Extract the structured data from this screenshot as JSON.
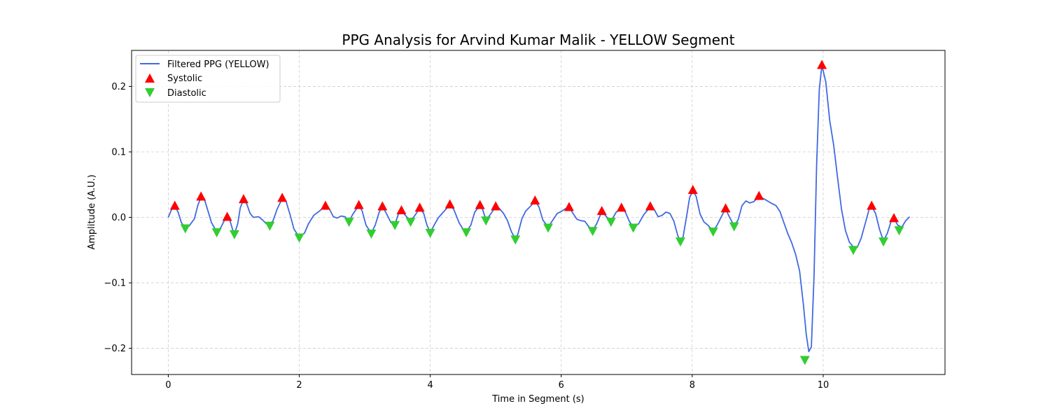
{
  "chart_data": {
    "type": "line",
    "title": "PPG Analysis for Arvind Kumar Malik - YELLOW Segment",
    "xlabel": "Time in Segment (s)",
    "ylabel": "Amplitude (A.U.)",
    "xlim": [
      -0.56,
      11.86
    ],
    "ylim": [
      -0.24,
      0.255
    ],
    "xticks": [
      0,
      2,
      4,
      6,
      8,
      10
    ],
    "xtick_labels": [
      "0",
      "2",
      "4",
      "6",
      "8",
      "10"
    ],
    "yticks": [
      -0.2,
      -0.1,
      0.0,
      0.1,
      0.2
    ],
    "ytick_labels": [
      "−0.2",
      "−0.1",
      "0.0",
      "0.1",
      "0.2"
    ],
    "grid": true,
    "legend_position": "top-left",
    "colors": {
      "line": "#4169e1",
      "systolic": "#ff0000",
      "diastolic": "#32cd32"
    },
    "series": [
      {
        "name": "Filtered PPG (YELLOW)",
        "kind": "line",
        "points": [
          [
            0.0,
            0.0
          ],
          [
            0.05,
            0.012
          ],
          [
            0.1,
            0.017
          ],
          [
            0.15,
            0.008
          ],
          [
            0.2,
            -0.008
          ],
          [
            0.26,
            -0.016
          ],
          [
            0.32,
            -0.013
          ],
          [
            0.4,
            -0.002
          ],
          [
            0.45,
            0.018
          ],
          [
            0.5,
            0.031
          ],
          [
            0.55,
            0.028
          ],
          [
            0.6,
            0.012
          ],
          [
            0.66,
            -0.008
          ],
          [
            0.74,
            -0.022
          ],
          [
            0.8,
            -0.016
          ],
          [
            0.86,
            -0.004
          ],
          [
            0.9,
            0.0
          ],
          [
            0.94,
            -0.004
          ],
          [
            0.98,
            -0.018
          ],
          [
            1.01,
            -0.025
          ],
          [
            1.06,
            -0.01
          ],
          [
            1.1,
            0.015
          ],
          [
            1.15,
            0.027
          ],
          [
            1.2,
            0.02
          ],
          [
            1.25,
            0.006
          ],
          [
            1.3,
            0.0
          ],
          [
            1.38,
            0.001
          ],
          [
            1.44,
            -0.004
          ],
          [
            1.5,
            -0.01
          ],
          [
            1.55,
            -0.012
          ],
          [
            1.6,
            -0.005
          ],
          [
            1.66,
            0.012
          ],
          [
            1.74,
            0.029
          ],
          [
            1.8,
            0.024
          ],
          [
            1.86,
            0.004
          ],
          [
            1.92,
            -0.018
          ],
          [
            2.0,
            -0.03
          ],
          [
            2.08,
            -0.024
          ],
          [
            2.14,
            -0.01
          ],
          [
            2.22,
            0.003
          ],
          [
            2.3,
            0.009
          ],
          [
            2.4,
            0.017
          ],
          [
            2.46,
            0.013
          ],
          [
            2.52,
            0.001
          ],
          [
            2.58,
            -0.001
          ],
          [
            2.64,
            0.002
          ],
          [
            2.7,
            0.001
          ],
          [
            2.76,
            -0.006
          ],
          [
            2.82,
            0.005
          ],
          [
            2.91,
            0.018
          ],
          [
            2.96,
            0.01
          ],
          [
            3.02,
            -0.012
          ],
          [
            3.1,
            -0.024
          ],
          [
            3.16,
            -0.012
          ],
          [
            3.22,
            0.008
          ],
          [
            3.27,
            0.016
          ],
          [
            3.32,
            0.008
          ],
          [
            3.4,
            -0.008
          ],
          [
            3.46,
            -0.011
          ],
          [
            3.51,
            0.004
          ],
          [
            3.56,
            0.01
          ],
          [
            3.62,
            0.003
          ],
          [
            3.7,
            -0.006
          ],
          [
            3.78,
            0.005
          ],
          [
            3.84,
            0.014
          ],
          [
            3.9,
            0.006
          ],
          [
            3.95,
            -0.012
          ],
          [
            4.0,
            -0.023
          ],
          [
            4.06,
            -0.012
          ],
          [
            4.12,
            -0.001
          ],
          [
            4.2,
            0.008
          ],
          [
            4.3,
            0.019
          ],
          [
            4.36,
            0.012
          ],
          [
            4.44,
            -0.008
          ],
          [
            4.5,
            -0.018
          ],
          [
            4.55,
            -0.022
          ],
          [
            4.62,
            -0.012
          ],
          [
            4.68,
            0.008
          ],
          [
            4.76,
            0.018
          ],
          [
            4.8,
            0.012
          ],
          [
            4.85,
            -0.004
          ],
          [
            4.9,
            0.002
          ],
          [
            5.0,
            0.016
          ],
          [
            5.05,
            0.014
          ],
          [
            5.12,
            0.006
          ],
          [
            5.18,
            -0.005
          ],
          [
            5.24,
            -0.022
          ],
          [
            5.3,
            -0.033
          ],
          [
            5.34,
            -0.025
          ],
          [
            5.4,
            -0.002
          ],
          [
            5.46,
            0.01
          ],
          [
            5.54,
            0.018
          ],
          [
            5.6,
            0.025
          ],
          [
            5.66,
            0.016
          ],
          [
            5.72,
            -0.004
          ],
          [
            5.8,
            -0.015
          ],
          [
            5.86,
            -0.006
          ],
          [
            5.94,
            0.006
          ],
          [
            6.0,
            0.009
          ],
          [
            6.06,
            0.013
          ],
          [
            6.12,
            0.015
          ],
          [
            6.18,
            0.006
          ],
          [
            6.24,
            -0.003
          ],
          [
            6.3,
            -0.005
          ],
          [
            6.36,
            -0.006
          ],
          [
            6.42,
            -0.014
          ],
          [
            6.48,
            -0.02
          ],
          [
            6.54,
            -0.01
          ],
          [
            6.62,
            0.009
          ],
          [
            6.7,
            0.0
          ],
          [
            6.76,
            -0.006
          ],
          [
            6.84,
            0.008
          ],
          [
            6.92,
            0.014
          ],
          [
            6.98,
            0.008
          ],
          [
            7.04,
            -0.006
          ],
          [
            7.1,
            -0.015
          ],
          [
            7.18,
            -0.01
          ],
          [
            7.26,
            0.004
          ],
          [
            7.36,
            0.016
          ],
          [
            7.42,
            0.012
          ],
          [
            7.48,
            0.001
          ],
          [
            7.54,
            0.003
          ],
          [
            7.6,
            0.008
          ],
          [
            7.66,
            0.006
          ],
          [
            7.72,
            -0.006
          ],
          [
            7.78,
            -0.028
          ],
          [
            7.82,
            -0.036
          ],
          [
            7.86,
            -0.03
          ],
          [
            7.92,
            0.005
          ],
          [
            7.96,
            0.03
          ],
          [
            8.01,
            0.041
          ],
          [
            8.06,
            0.032
          ],
          [
            8.12,
            0.005
          ],
          [
            8.18,
            -0.007
          ],
          [
            8.24,
            -0.012
          ],
          [
            8.32,
            -0.021
          ],
          [
            8.38,
            -0.012
          ],
          [
            8.46,
            0.004
          ],
          [
            8.51,
            0.013
          ],
          [
            8.56,
            0.002
          ],
          [
            8.64,
            -0.013
          ],
          [
            8.7,
            -0.004
          ],
          [
            8.76,
            0.018
          ],
          [
            8.82,
            0.025
          ],
          [
            8.88,
            0.022
          ],
          [
            8.94,
            0.024
          ],
          [
            9.02,
            0.032
          ],
          [
            9.1,
            0.028
          ],
          [
            9.2,
            0.022
          ],
          [
            9.28,
            0.018
          ],
          [
            9.34,
            0.009
          ],
          [
            9.4,
            -0.008
          ],
          [
            9.46,
            -0.025
          ],
          [
            9.52,
            -0.039
          ],
          [
            9.58,
            -0.057
          ],
          [
            9.64,
            -0.082
          ],
          [
            9.7,
            -0.135
          ],
          [
            9.74,
            -0.178
          ],
          [
            9.78,
            -0.205
          ],
          [
            9.82,
            -0.198
          ],
          [
            9.86,
            -0.09
          ],
          [
            9.9,
            0.08
          ],
          [
            9.94,
            0.195
          ],
          [
            9.98,
            0.232
          ],
          [
            10.04,
            0.207
          ],
          [
            10.1,
            0.148
          ],
          [
            10.16,
            0.11
          ],
          [
            10.22,
            0.06
          ],
          [
            10.28,
            0.012
          ],
          [
            10.34,
            -0.02
          ],
          [
            10.4,
            -0.038
          ],
          [
            10.46,
            -0.045
          ],
          [
            10.52,
            -0.046
          ],
          [
            10.58,
            -0.032
          ],
          [
            10.64,
            -0.01
          ],
          [
            10.7,
            0.012
          ],
          [
            10.74,
            0.017
          ],
          [
            10.8,
            0.006
          ],
          [
            10.86,
            -0.018
          ],
          [
            10.92,
            -0.036
          ],
          [
            10.98,
            -0.024
          ],
          [
            11.04,
            -0.005
          ],
          [
            11.08,
            -0.002
          ],
          [
            11.14,
            -0.012
          ],
          [
            11.2,
            -0.015
          ],
          [
            11.26,
            -0.005
          ],
          [
            11.32,
            0.001
          ]
        ]
      },
      {
        "name": "Systolic",
        "kind": "marker",
        "marker": "triangle-up",
        "points": [
          [
            0.1,
            0.017
          ],
          [
            0.5,
            0.031
          ],
          [
            0.9,
            0.0
          ],
          [
            1.15,
            0.027
          ],
          [
            1.74,
            0.029
          ],
          [
            2.4,
            0.017
          ],
          [
            2.91,
            0.018
          ],
          [
            3.27,
            0.016
          ],
          [
            3.56,
            0.01
          ],
          [
            3.84,
            0.014
          ],
          [
            4.3,
            0.019
          ],
          [
            4.76,
            0.018
          ],
          [
            5.0,
            0.016
          ],
          [
            5.6,
            0.025
          ],
          [
            6.12,
            0.015
          ],
          [
            6.62,
            0.009
          ],
          [
            6.92,
            0.014
          ],
          [
            7.36,
            0.016
          ],
          [
            8.01,
            0.041
          ],
          [
            8.51,
            0.013
          ],
          [
            9.02,
            0.032
          ],
          [
            9.98,
            0.232
          ],
          [
            10.74,
            0.017
          ],
          [
            11.08,
            -0.002
          ]
        ]
      },
      {
        "name": "Diastolic",
        "kind": "marker",
        "marker": "triangle-down",
        "points": [
          [
            0.26,
            -0.016
          ],
          [
            0.74,
            -0.022
          ],
          [
            1.01,
            -0.025
          ],
          [
            1.55,
            -0.012
          ],
          [
            2.0,
            -0.03
          ],
          [
            2.76,
            -0.006
          ],
          [
            3.1,
            -0.024
          ],
          [
            3.46,
            -0.011
          ],
          [
            3.7,
            -0.006
          ],
          [
            4.0,
            -0.023
          ],
          [
            4.55,
            -0.022
          ],
          [
            4.85,
            -0.004
          ],
          [
            5.3,
            -0.033
          ],
          [
            5.8,
            -0.015
          ],
          [
            6.48,
            -0.02
          ],
          [
            6.76,
            -0.006
          ],
          [
            7.1,
            -0.015
          ],
          [
            7.82,
            -0.036
          ],
          [
            8.32,
            -0.021
          ],
          [
            8.64,
            -0.013
          ],
          [
            9.72,
            -0.217
          ],
          [
            10.46,
            -0.049
          ],
          [
            10.92,
            -0.036
          ],
          [
            11.16,
            -0.019
          ]
        ]
      }
    ]
  }
}
